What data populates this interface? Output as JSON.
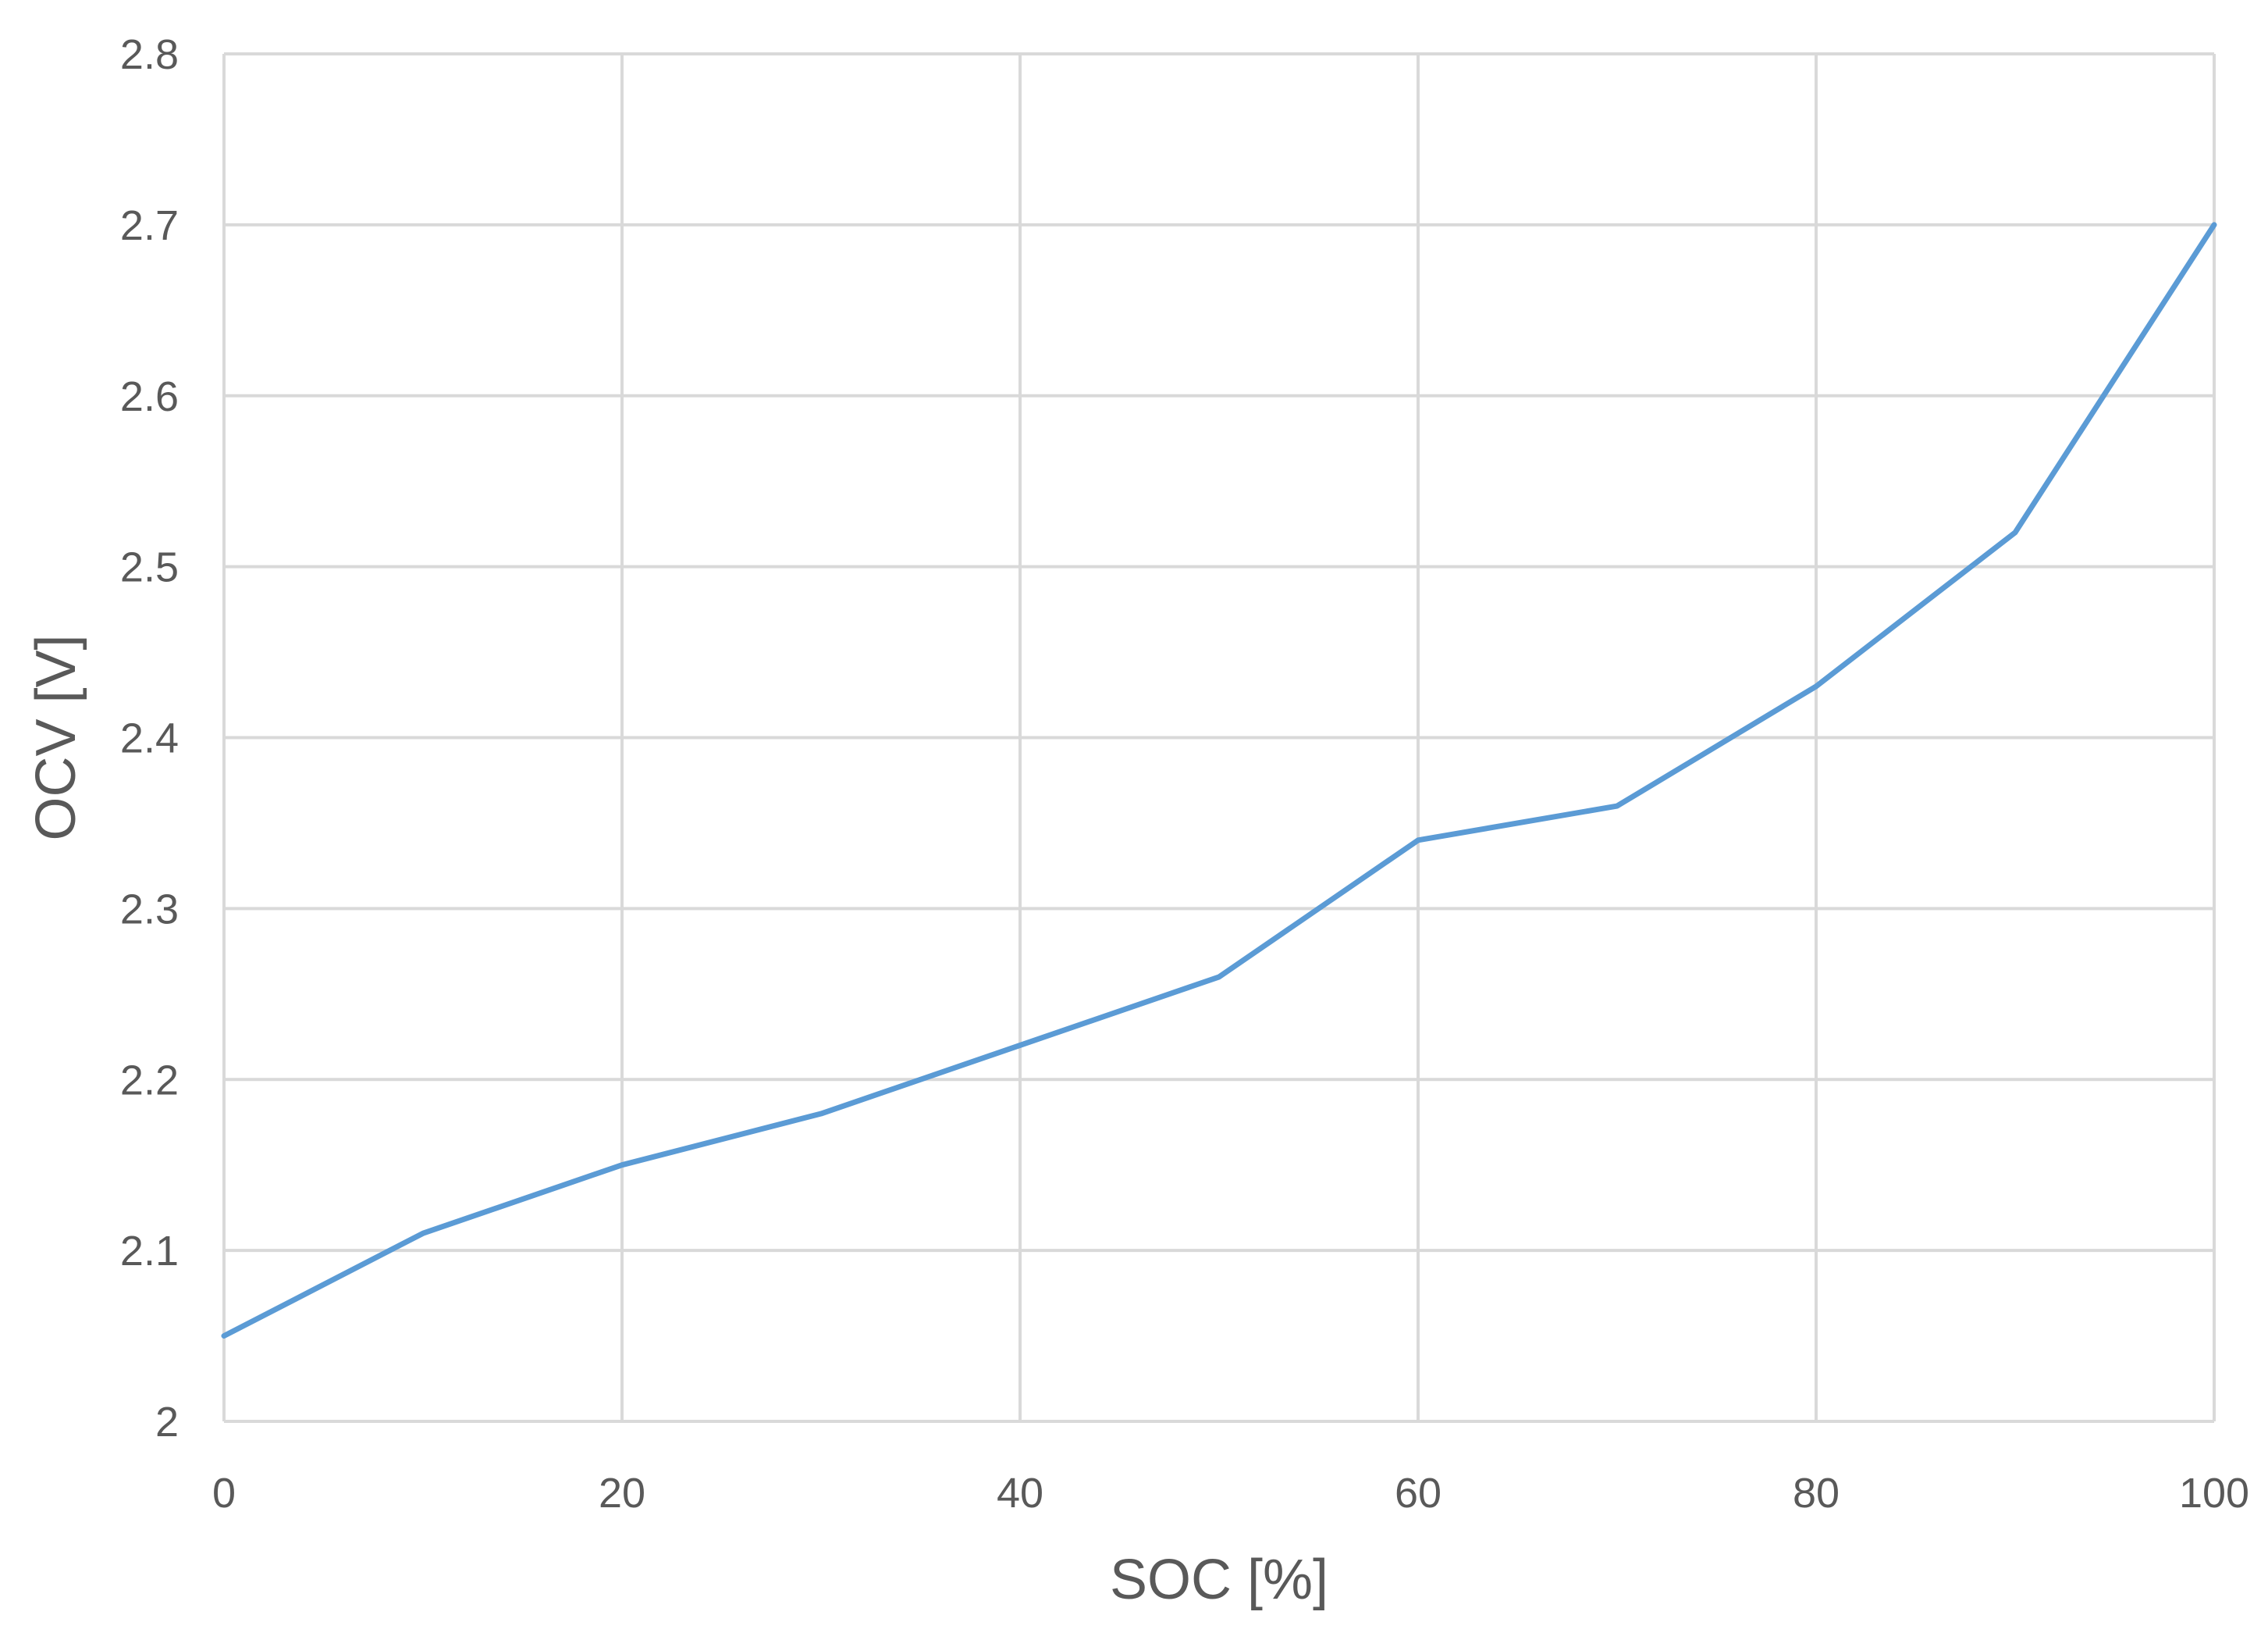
{
  "chart_data": {
    "type": "line",
    "title": "",
    "xlabel": "SOC [%]",
    "ylabel": "OCV [V]",
    "xlim": [
      0,
      100
    ],
    "ylim": [
      2,
      2.8
    ],
    "xticks": [
      0,
      20,
      40,
      60,
      80,
      100
    ],
    "yticks": [
      2,
      2.1,
      2.2,
      2.3,
      2.4,
      2.5,
      2.6,
      2.7,
      2.8
    ],
    "xtick_labels": [
      "0",
      "20",
      "40",
      "60",
      "80",
      "100"
    ],
    "ytick_labels": [
      "2",
      "2.1",
      "2.2",
      "2.3",
      "2.4",
      "2.5",
      "2.6",
      "2.7",
      "2.8"
    ],
    "grid": true,
    "legend": "none",
    "series": [
      {
        "color": "#5b9bd5",
        "x": [
          0,
          10,
          20,
          30,
          40,
          50,
          60,
          70,
          80,
          90,
          100
        ],
        "y": [
          2.05,
          2.11,
          2.15,
          2.18,
          2.22,
          2.26,
          2.34,
          2.36,
          2.43,
          2.52,
          2.7
        ]
      }
    ]
  }
}
